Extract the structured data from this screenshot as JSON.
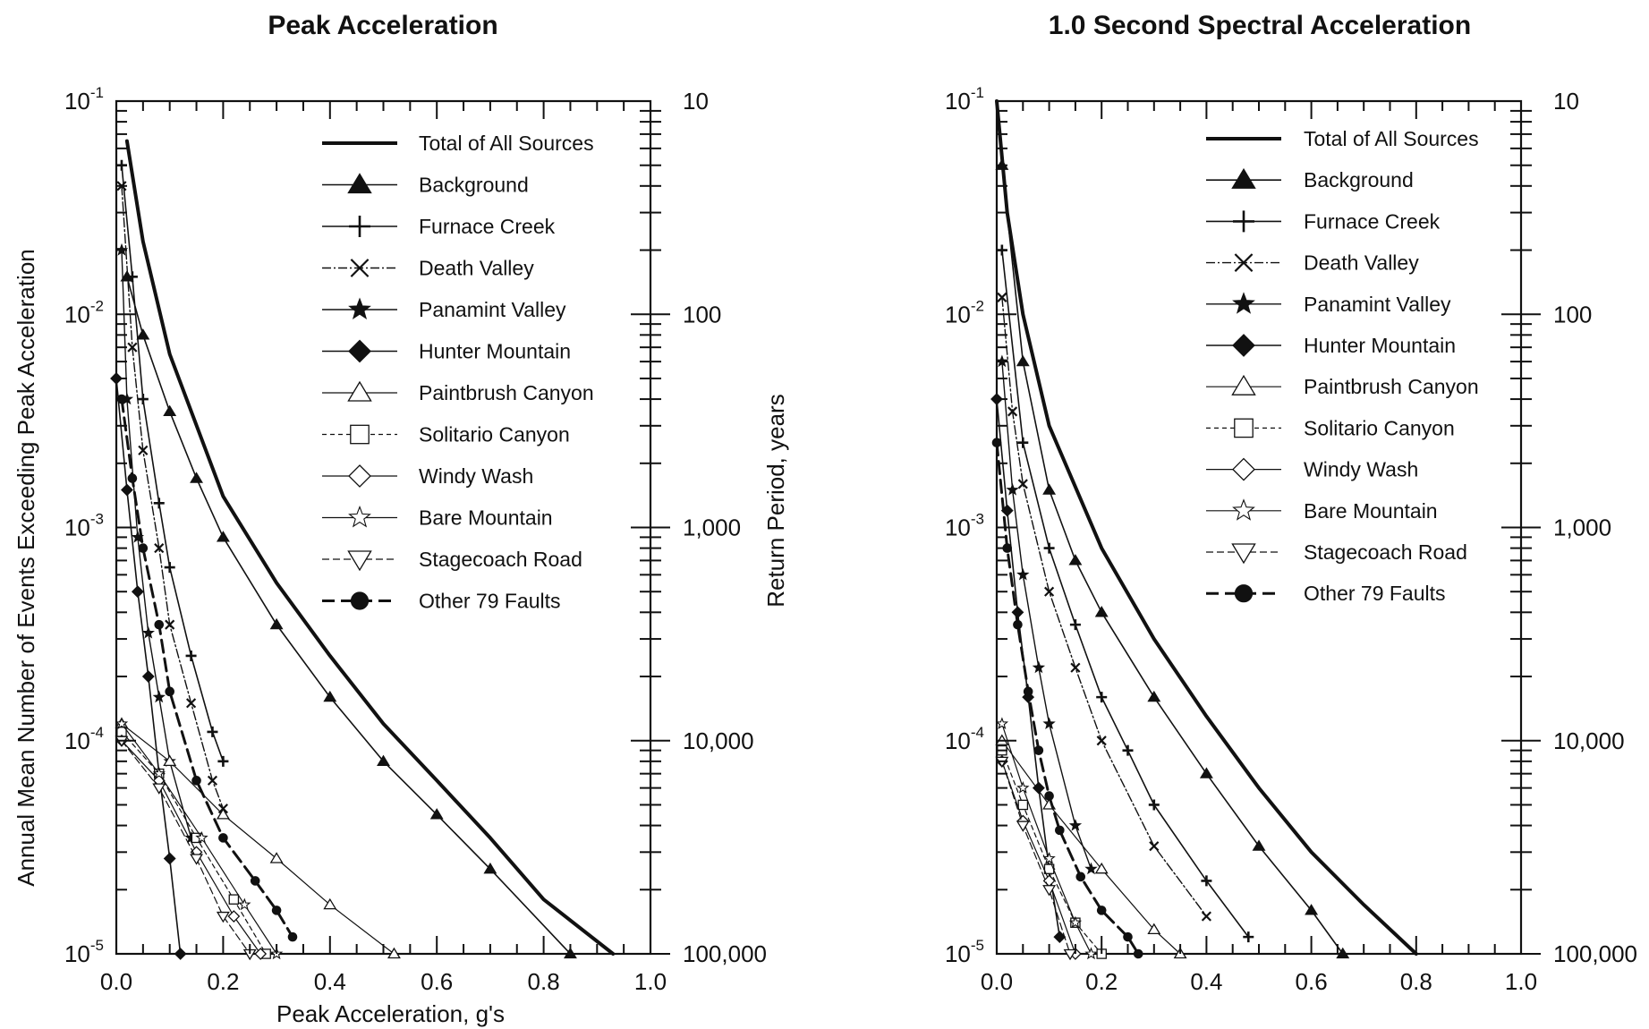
{
  "chart_data": [
    {
      "type": "line",
      "title": "Peak Acceleration",
      "xlabel": "Peak Acceleration, g's",
      "ylabel": "Annual Mean Number of Events Exceeding Peak Acceleration",
      "ylabel_right": "Return Period, years",
      "xlim": [
        0,
        1.0
      ],
      "ylim": [
        1e-05,
        0.1
      ],
      "yscale": "log",
      "x_ticks": [
        "0.0",
        "0.2",
        "0.4",
        "0.6",
        "0.8",
        "1.0"
      ],
      "y_ticks": [
        {
          "base": "10",
          "exp": "-1"
        },
        {
          "base": "10",
          "exp": "-2"
        },
        {
          "base": "10",
          "exp": "-3"
        },
        {
          "base": "10",
          "exp": "-4"
        },
        {
          "base": "10",
          "exp": "-5"
        }
      ],
      "y_right_ticks": [
        "10",
        "100",
        "1,000",
        "10,000",
        "100,000"
      ],
      "legend_position": "top-right",
      "series": [
        {
          "name": "Total of All Sources",
          "x": [
            0.02,
            0.05,
            0.1,
            0.2,
            0.3,
            0.4,
            0.5,
            0.6,
            0.7,
            0.8,
            0.93
          ],
          "y": [
            0.065,
            0.022,
            0.0065,
            0.0014,
            0.00055,
            0.00025,
            0.00012,
            6.5e-05,
            3.5e-05,
            1.8e-05,
            1e-05
          ]
        },
        {
          "name": "Background",
          "x": [
            0.02,
            0.05,
            0.1,
            0.15,
            0.2,
            0.3,
            0.4,
            0.5,
            0.6,
            0.7,
            0.85
          ],
          "y": [
            0.015,
            0.008,
            0.0035,
            0.0017,
            0.0009,
            0.00035,
            0.00016,
            8e-05,
            4.5e-05,
            2.5e-05,
            1e-05
          ]
        },
        {
          "name": "Furnace Creek",
          "x": [
            0.01,
            0.03,
            0.05,
            0.08,
            0.1,
            0.14,
            0.18,
            0.2
          ],
          "y": [
            0.05,
            0.015,
            0.004,
            0.0013,
            0.00065,
            0.00025,
            0.00011,
            8e-05
          ]
        },
        {
          "name": "Death Valley",
          "x": [
            0.01,
            0.03,
            0.05,
            0.08,
            0.1,
            0.14,
            0.18,
            0.2
          ],
          "y": [
            0.04,
            0.007,
            0.0023,
            0.0008,
            0.00035,
            0.00015,
            6.5e-05,
            4.8e-05
          ]
        },
        {
          "name": "Panamint Valley",
          "x": [
            0.01,
            0.02,
            0.04,
            0.06,
            0.08,
            0.1,
            0.14
          ],
          "y": [
            0.02,
            0.004,
            0.0009,
            0.00032,
            0.00016,
            8e-05,
            3.5e-05
          ]
        },
        {
          "name": "Hunter Mountain",
          "x": [
            0.0,
            0.02,
            0.04,
            0.06,
            0.08,
            0.1,
            0.12
          ],
          "y": [
            0.005,
            0.0015,
            0.0005,
            0.0002,
            7e-05,
            2.8e-05,
            1e-05
          ]
        },
        {
          "name": "Paintbrush Canyon",
          "x": [
            0.01,
            0.1,
            0.2,
            0.3,
            0.4,
            0.52
          ],
          "y": [
            0.00012,
            8e-05,
            4.5e-05,
            2.8e-05,
            1.7e-05,
            1e-05
          ]
        },
        {
          "name": "Solitario Canyon",
          "x": [
            0.01,
            0.08,
            0.15,
            0.22,
            0.28
          ],
          "y": [
            0.00011,
            7e-05,
            3.5e-05,
            1.8e-05,
            1e-05
          ]
        },
        {
          "name": "Windy Wash",
          "x": [
            0.01,
            0.08,
            0.15,
            0.22,
            0.27
          ],
          "y": [
            0.0001,
            6.5e-05,
            3e-05,
            1.5e-05,
            1e-05
          ]
        },
        {
          "name": "Bare Mountain",
          "x": [
            0.01,
            0.08,
            0.16,
            0.24,
            0.3
          ],
          "y": [
            0.00012,
            7e-05,
            3.5e-05,
            1.7e-05,
            1e-05
          ]
        },
        {
          "name": "Stagecoach Road",
          "x": [
            0.01,
            0.08,
            0.15,
            0.2,
            0.25
          ],
          "y": [
            0.0001,
            6e-05,
            2.8e-05,
            1.5e-05,
            1e-05
          ]
        },
        {
          "name": "Other 79 Faults",
          "x": [
            0.01,
            0.03,
            0.05,
            0.08,
            0.1,
            0.15,
            0.2,
            0.26,
            0.3,
            0.33
          ],
          "y": [
            0.004,
            0.0017,
            0.0008,
            0.00035,
            0.00017,
            6.5e-05,
            3.5e-05,
            2.2e-05,
            1.6e-05,
            1.2e-05
          ]
        }
      ]
    },
    {
      "type": "line",
      "title": "1.0 Second Spectral Acceleration",
      "xlabel": "",
      "ylabel": "",
      "xlim": [
        0,
        1.0
      ],
      "ylim": [
        1e-05,
        0.1
      ],
      "yscale": "log",
      "x_ticks": [
        "0.0",
        "0.2",
        "0.4",
        "0.6",
        "0.8",
        "1.0"
      ],
      "y_ticks": [
        {
          "base": "10",
          "exp": "-1"
        },
        {
          "base": "10",
          "exp": "-2"
        },
        {
          "base": "10",
          "exp": "-3"
        },
        {
          "base": "10",
          "exp": "-4"
        },
        {
          "base": "10",
          "exp": "-5"
        }
      ],
      "y_right_ticks": [
        "10",
        "100",
        "1,000",
        "10,000",
        "100,000"
      ],
      "legend_position": "top-right",
      "series": [
        {
          "name": "Total of All Sources",
          "x": [
            0.0,
            0.02,
            0.05,
            0.1,
            0.2,
            0.3,
            0.4,
            0.5,
            0.6,
            0.7,
            0.8
          ],
          "y": [
            0.1,
            0.03,
            0.01,
            0.003,
            0.0008,
            0.0003,
            0.00013,
            6e-05,
            3e-05,
            1.7e-05,
            1e-05
          ]
        },
        {
          "name": "Background",
          "x": [
            0.01,
            0.05,
            0.1,
            0.15,
            0.2,
            0.3,
            0.4,
            0.5,
            0.6,
            0.66
          ],
          "y": [
            0.05,
            0.006,
            0.0015,
            0.0007,
            0.0004,
            0.00016,
            7e-05,
            3.2e-05,
            1.6e-05,
            1e-05
          ]
        },
        {
          "name": "Furnace Creek",
          "x": [
            0.01,
            0.05,
            0.1,
            0.15,
            0.2,
            0.25,
            0.3,
            0.4,
            0.48
          ],
          "y": [
            0.02,
            0.0025,
            0.0008,
            0.00035,
            0.00016,
            9e-05,
            5e-05,
            2.2e-05,
            1.2e-05
          ]
        },
        {
          "name": "Death Valley",
          "x": [
            0.01,
            0.03,
            0.05,
            0.1,
            0.15,
            0.2,
            0.3,
            0.4
          ],
          "y": [
            0.012,
            0.0035,
            0.0016,
            0.0005,
            0.00022,
            0.0001,
            3.2e-05,
            1.5e-05
          ]
        },
        {
          "name": "Panamint Valley",
          "x": [
            0.01,
            0.03,
            0.05,
            0.08,
            0.1,
            0.15,
            0.18
          ],
          "y": [
            0.006,
            0.0015,
            0.0006,
            0.00022,
            0.00012,
            4e-05,
            2.5e-05
          ]
        },
        {
          "name": "Hunter Mountain",
          "x": [
            0.0,
            0.02,
            0.04,
            0.06,
            0.08,
            0.1,
            0.12
          ],
          "y": [
            0.004,
            0.0012,
            0.0004,
            0.00016,
            6e-05,
            2.5e-05,
            1.2e-05
          ]
        },
        {
          "name": "Paintbrush Canyon",
          "x": [
            0.01,
            0.1,
            0.2,
            0.3,
            0.35
          ],
          "y": [
            0.0001,
            5e-05,
            2.5e-05,
            1.3e-05,
            1e-05
          ]
        },
        {
          "name": "Solitario Canyon",
          "x": [
            0.01,
            0.05,
            0.1,
            0.15,
            0.2
          ],
          "y": [
            9e-05,
            5e-05,
            2.5e-05,
            1.4e-05,
            1e-05
          ]
        },
        {
          "name": "Windy Wash",
          "x": [
            0.01,
            0.05,
            0.1,
            0.15
          ],
          "y": [
            8e-05,
            4.2e-05,
            2.2e-05,
            1e-05
          ]
        },
        {
          "name": "Bare Mountain",
          "x": [
            0.01,
            0.05,
            0.1,
            0.15,
            0.18
          ],
          "y": [
            0.00012,
            6e-05,
            2.8e-05,
            1.4e-05,
            1e-05
          ]
        },
        {
          "name": "Stagecoach Road",
          "x": [
            0.01,
            0.05,
            0.1,
            0.14
          ],
          "y": [
            8e-05,
            4e-05,
            2e-05,
            1e-05
          ]
        },
        {
          "name": "Other 79 Faults",
          "x": [
            0.0,
            0.02,
            0.04,
            0.06,
            0.08,
            0.1,
            0.12,
            0.16,
            0.2,
            0.25,
            0.27
          ],
          "y": [
            0.0025,
            0.0008,
            0.00035,
            0.00017,
            9e-05,
            5.5e-05,
            3.8e-05,
            2.3e-05,
            1.6e-05,
            1.2e-05,
            1e-05
          ]
        }
      ]
    }
  ]
}
